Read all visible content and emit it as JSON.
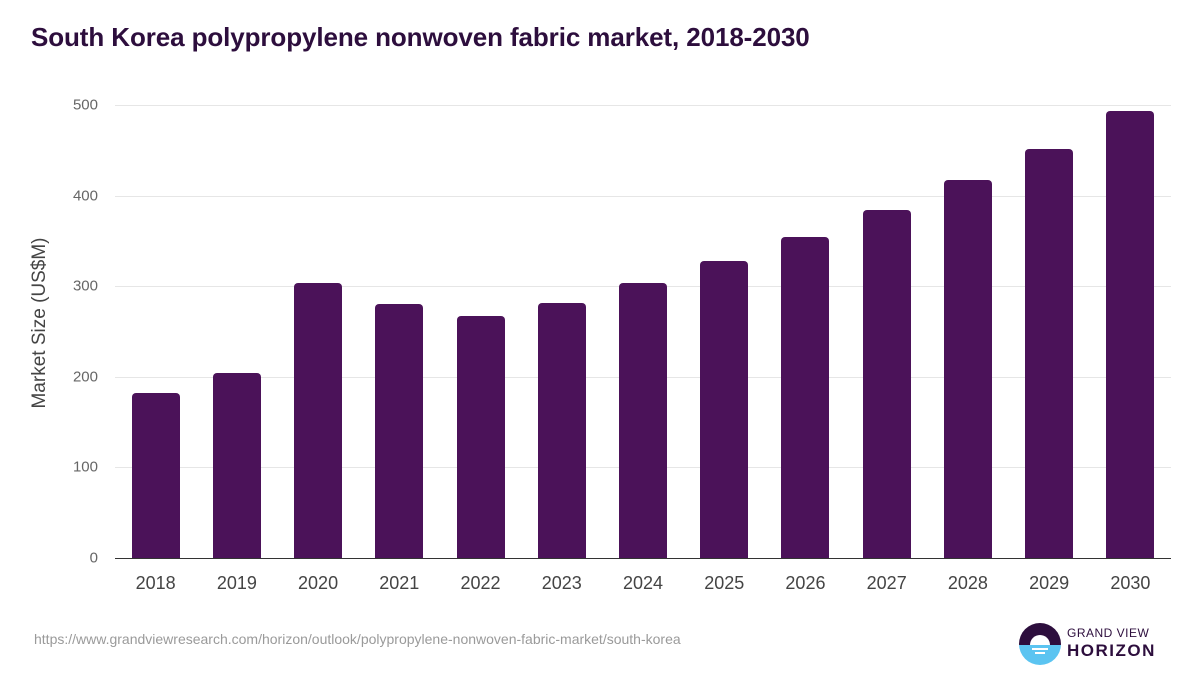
{
  "title": "South Korea polypropylene nonwoven fabric market, 2018-2030",
  "source_url": "https://www.grandviewresearch.com/horizon/outlook/polypropylene-nonwoven-fabric-market/south-korea",
  "brand": {
    "line1": "GRAND VIEW",
    "line2": "HORIZON",
    "icon": "horizon-sun-logo-icon"
  },
  "colors": {
    "bar": "#4b1259",
    "title": "#2d0e3d",
    "logo_top": "#2d0e3d",
    "logo_bottom": "#5bc4f1"
  },
  "chart_data": {
    "type": "bar",
    "title": "South Korea polypropylene nonwoven fabric market, 2018-2030",
    "xlabel": "",
    "ylabel": "Market Size (US$M)",
    "ylim": [
      0,
      500
    ],
    "yticks": [
      0,
      100,
      200,
      300,
      400,
      500
    ],
    "grid": true,
    "legend": null,
    "categories": [
      "2018",
      "2019",
      "2020",
      "2021",
      "2022",
      "2023",
      "2024",
      "2025",
      "2026",
      "2027",
      "2028",
      "2029",
      "2030"
    ],
    "values": [
      182,
      204,
      303,
      280,
      267,
      282,
      303,
      328,
      354,
      384,
      417,
      452,
      493
    ]
  }
}
